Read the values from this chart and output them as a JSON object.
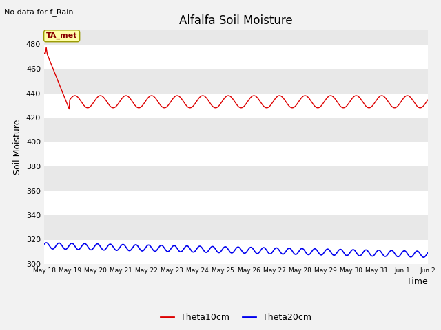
{
  "title": "Alfalfa Soil Moisture",
  "subtitle": "No data for f_Rain",
  "ylabel": "Soil Moisture",
  "xlabel": "Time",
  "annotation": "TA_met",
  "ylim": [
    300,
    492
  ],
  "yticks": [
    300,
    320,
    340,
    360,
    380,
    400,
    420,
    440,
    460,
    480
  ],
  "xlim": [
    0,
    15
  ],
  "theta10_color": "#dd0000",
  "theta20_color": "#0000ee",
  "bg_color_light": "#e8e8e8",
  "bg_color_dark": "#d8d8d8",
  "grid_color": "#ffffff",
  "fig_bg": "#f2f2f2",
  "annotation_fg": "#880000",
  "annotation_bg": "#ffffaa",
  "annotation_edge": "#999900",
  "legend_labels": [
    "Theta10cm",
    "Theta20cm"
  ],
  "title_fontsize": 12,
  "tick_fontsize": 8,
  "label_fontsize": 9
}
